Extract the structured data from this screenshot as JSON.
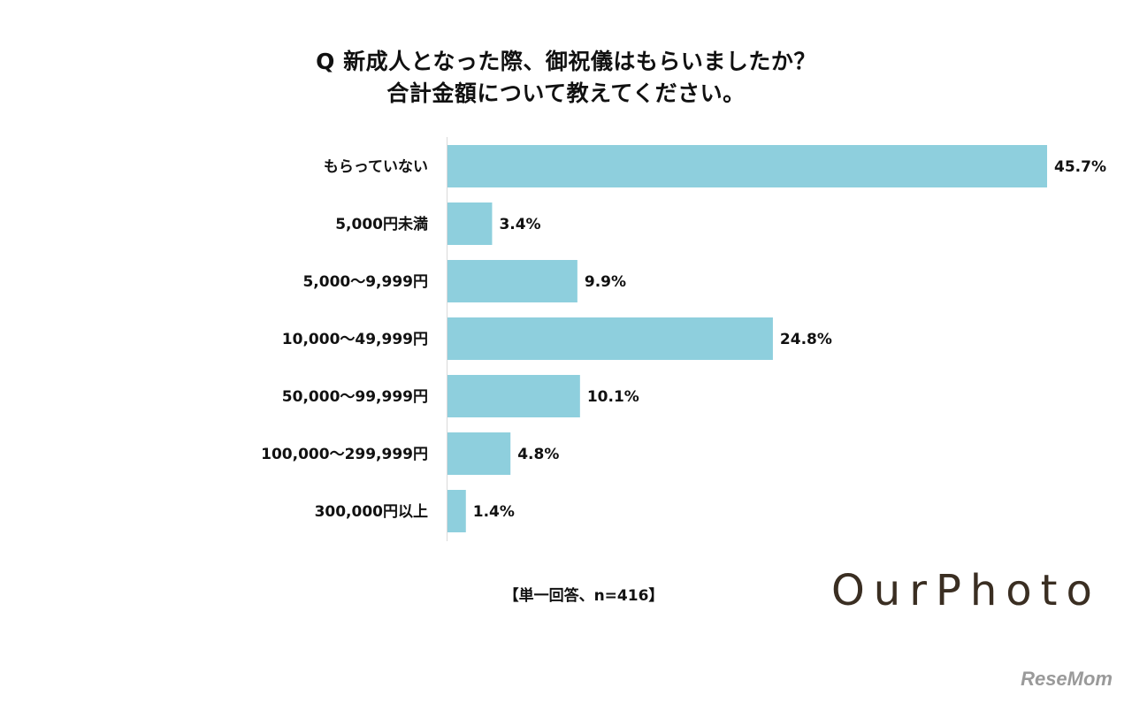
{
  "title": {
    "line1": "Q 新成人となった際、御祝儀はもらいましたか？",
    "line2": "合計金額について教えてください。"
  },
  "footnote": "【単一回答、n=416】",
  "logo": "OurPhoto",
  "watermark": "ReseMom",
  "colors": {
    "bar": "#8ecfdd",
    "axis": "#d9d9d9",
    "text": "#111111"
  },
  "chart_data": {
    "type": "bar",
    "orientation": "horizontal",
    "categories": [
      "もらっていない",
      "5,000円未満",
      "5,000〜9,999円",
      "10,000〜49,999円",
      "50,000〜99,999円",
      "100,000〜299,999円",
      "300,000円以上"
    ],
    "values": [
      45.7,
      3.4,
      9.9,
      24.8,
      10.1,
      4.8,
      1.4
    ],
    "value_labels": [
      "45.7%",
      "3.4%",
      "9.9%",
      "24.8%",
      "10.1%",
      "4.8%",
      "1.4%"
    ],
    "xlim": [
      0,
      45.7
    ],
    "grid": false,
    "legend": "none"
  }
}
